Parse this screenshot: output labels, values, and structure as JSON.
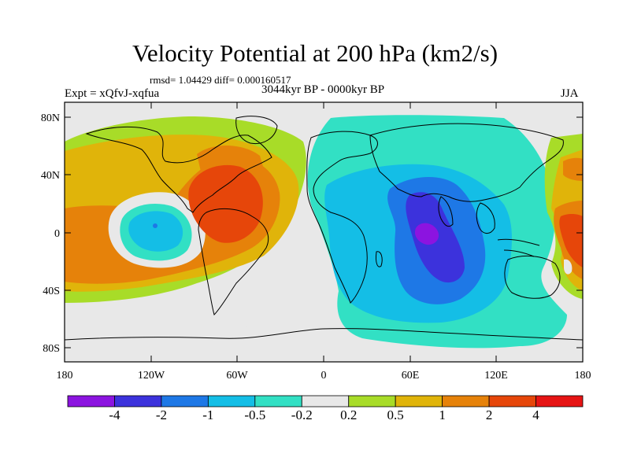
{
  "figure": {
    "title": "Velocity Potential at 200 hPa (km2/s)",
    "stats": "rmsd= 1.04429 diff= 0.000160517",
    "experiment": "Expt = xQfvJ-xqfua",
    "period": "3044kyr BP - 0000kyr BP",
    "season": "JJA"
  },
  "axes": {
    "lat_ticks": [
      "80N",
      "40N",
      "0",
      "40S",
      "80S"
    ],
    "lon_ticks": [
      "180",
      "120W",
      "60W",
      "0",
      "60E",
      "120E",
      "180"
    ]
  },
  "colorbar": {
    "colors": [
      "#8c14e0",
      "#3c32dc",
      "#1e78e6",
      "#14bee6",
      "#32e0c4",
      "#e8e8e8",
      "#a8dc28",
      "#e0b40a",
      "#e6820a",
      "#e6460a",
      "#e61414"
    ],
    "labels": [
      "-4",
      "-2",
      "-1",
      "-0.5",
      "-0.2",
      "0.2",
      "0.5",
      "1",
      "2",
      "4"
    ]
  },
  "map_colors": {
    "ocean_background": "#e8e8e8",
    "coastline": "#000000"
  }
}
